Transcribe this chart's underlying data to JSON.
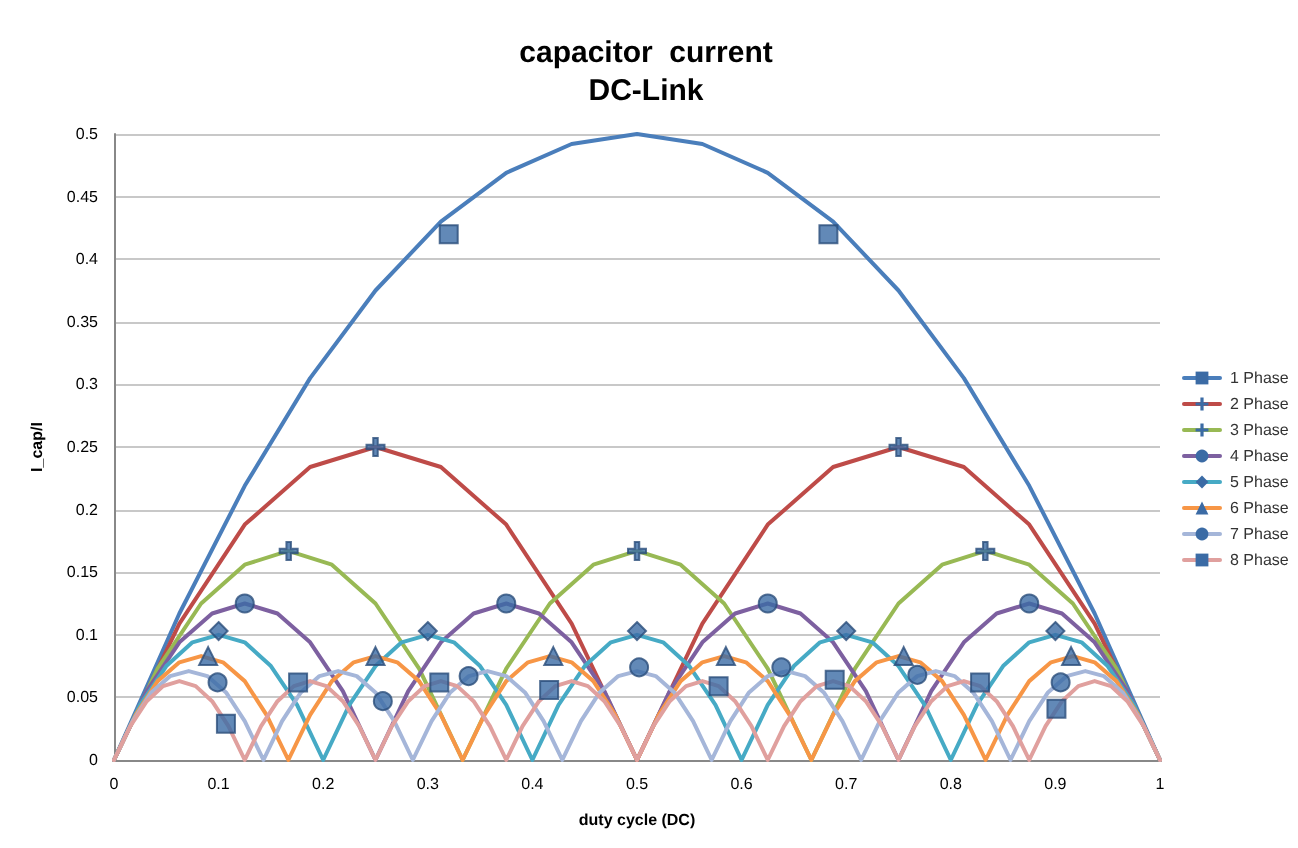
{
  "chart_data": {
    "type": "line",
    "title": "capacitor  current",
    "subtitle": "DC-Link",
    "xlabel": "duty cycle (DC)",
    "ylabel": "I_cap/I",
    "xlim": [
      0,
      1
    ],
    "xticks": [
      0,
      0.1,
      0.2,
      0.3,
      0.4,
      0.5,
      0.6,
      0.7,
      0.8,
      0.9,
      1
    ],
    "ylim": [
      0,
      0.5
    ],
    "yticks": [
      0,
      0.05,
      0.1,
      0.15,
      0.2,
      0.25,
      0.3,
      0.35,
      0.4,
      0.45,
      0.5
    ],
    "grid": "y",
    "legend": "right",
    "line_style": "solid",
    "series": [
      {
        "name": "1 Phase",
        "color": "#4a7ebb",
        "x": [
          0,
          0.0625,
          0.125,
          0.1875,
          0.25,
          0.3125,
          0.375,
          0.4375,
          0.5,
          0.5625,
          0.625,
          0.6875,
          0.75,
          0.8125,
          0.875,
          0.9375,
          1
        ],
        "values": [
          0,
          0.117,
          0.219,
          0.305,
          0.375,
          0.43,
          0.469,
          0.492,
          0.5,
          0.492,
          0.469,
          0.43,
          0.375,
          0.305,
          0.219,
          0.117,
          0
        ]
      },
      {
        "type": "scatter",
        "color": "#3b6ba5",
        "marker": "square",
        "x": [
          0.32,
          0.683
        ],
        "values": [
          0.42,
          0.42
        ]
      },
      {
        "name": "2 Phase",
        "color": "#be4b48",
        "x": [
          0,
          0.0625,
          0.125,
          0.1875,
          0.25,
          0.3125,
          0.375,
          0.4375,
          0.5,
          0.5625,
          0.625,
          0.6875,
          0.75,
          0.8125,
          0.875,
          0.9375,
          1
        ],
        "values": [
          0,
          0.109,
          0.188,
          0.234,
          0.25,
          0.234,
          0.188,
          0.109,
          0,
          0.109,
          0.188,
          0.234,
          0.25,
          0.234,
          0.188,
          0.109,
          0
        ]
      },
      {
        "type": "scatter",
        "color": "#3b6ba5",
        "marker": "cross",
        "x": [
          0.25,
          0.75
        ],
        "values": [
          0.25,
          0.25
        ]
      },
      {
        "name": "3 Phase",
        "color": "#98b954",
        "x": [
          0,
          0.0417,
          0.0833,
          0.125,
          0.1667,
          0.2083,
          0.25,
          0.2917,
          0.3333,
          0.375,
          0.4167,
          0.4583,
          0.5,
          0.5417,
          0.5833,
          0.625,
          0.6667,
          0.7083,
          0.75,
          0.7917,
          0.8333,
          0.875,
          0.9167,
          0.9583,
          1
        ],
        "values": [
          0,
          0.073,
          0.125,
          0.156,
          0.167,
          0.156,
          0.125,
          0.073,
          0,
          0.073,
          0.125,
          0.156,
          0.167,
          0.156,
          0.125,
          0.073,
          0,
          0.073,
          0.125,
          0.156,
          0.167,
          0.156,
          0.125,
          0.073,
          0
        ]
      },
      {
        "type": "scatter",
        "color": "#3b6ba5",
        "marker": "cross",
        "x": [
          0.167,
          0.5,
          0.833
        ],
        "values": [
          0.167,
          0.167,
          0.167
        ]
      },
      {
        "name": "4 Phase",
        "color": "#7d60a0",
        "x": [
          0,
          0.0313,
          0.0625,
          0.0938,
          0.125,
          0.1563,
          0.1875,
          0.2188,
          0.25,
          0.2813,
          0.3125,
          0.3438,
          0.375,
          0.4063,
          0.4375,
          0.4688,
          0.5,
          0.5313,
          0.5625,
          0.5938,
          0.625,
          0.6563,
          0.6875,
          0.7188,
          0.75,
          0.7813,
          0.8125,
          0.8438,
          0.875,
          0.9063,
          0.9375,
          0.9688,
          1
        ],
        "values": [
          0,
          0.055,
          0.094,
          0.117,
          0.125,
          0.117,
          0.094,
          0.055,
          0,
          0.055,
          0.094,
          0.117,
          0.125,
          0.117,
          0.094,
          0.055,
          0,
          0.055,
          0.094,
          0.117,
          0.125,
          0.117,
          0.094,
          0.055,
          0,
          0.055,
          0.094,
          0.117,
          0.125,
          0.117,
          0.094,
          0.055,
          0
        ]
      },
      {
        "type": "scatter",
        "color": "#3b6ba5",
        "marker": "circle",
        "x": [
          0.125,
          0.375,
          0.625,
          0.875
        ],
        "values": [
          0.125,
          0.125,
          0.125,
          0.125
        ]
      },
      {
        "name": "5 Phase",
        "color": "#46aac5",
        "x": [
          0,
          0.025,
          0.05,
          0.075,
          0.1,
          0.125,
          0.15,
          0.175,
          0.2,
          0.225,
          0.25,
          0.275,
          0.3,
          0.325,
          0.35,
          0.375,
          0.4,
          0.425,
          0.45,
          0.475,
          0.5,
          0.525,
          0.55,
          0.575,
          0.6,
          0.625,
          0.65,
          0.675,
          0.7,
          0.725,
          0.75,
          0.775,
          0.8,
          0.825,
          0.85,
          0.875,
          0.9,
          0.925,
          0.95,
          0.975,
          1
        ],
        "values": [
          0,
          0.044,
          0.075,
          0.094,
          0.1,
          0.094,
          0.075,
          0.044,
          0,
          0.044,
          0.075,
          0.094,
          0.1,
          0.094,
          0.075,
          0.044,
          0,
          0.044,
          0.075,
          0.094,
          0.1,
          0.094,
          0.075,
          0.044,
          0,
          0.044,
          0.075,
          0.094,
          0.1,
          0.094,
          0.075,
          0.044,
          0,
          0.044,
          0.075,
          0.094,
          0.1,
          0.094,
          0.075,
          0.044,
          0
        ]
      },
      {
        "type": "scatter",
        "color": "#3b6ba5",
        "marker": "diamond",
        "x": [
          0.1,
          0.3,
          0.5,
          0.7,
          0.9
        ],
        "values": [
          0.103,
          0.103,
          0.103,
          0.103,
          0.103
        ]
      },
      {
        "name": "6 Phase",
        "color": "#f79646",
        "x": [
          0,
          0.0208,
          0.0417,
          0.0625,
          0.0833,
          0.1042,
          0.125,
          0.1458,
          0.1667,
          0.1875,
          0.2083,
          0.2292,
          0.25,
          0.2708,
          0.2917,
          0.3125,
          0.3333,
          0.3542,
          0.375,
          0.3958,
          0.4167,
          0.4375,
          0.4583,
          0.4792,
          0.5,
          0.5208,
          0.5417,
          0.5625,
          0.5833,
          0.6042,
          0.625,
          0.6458,
          0.6667,
          0.6875,
          0.7083,
          0.7292,
          0.75,
          0.7708,
          0.7917,
          0.8125,
          0.8333,
          0.8542,
          0.875,
          0.8958,
          0.9167,
          0.9375,
          0.9583,
          0.9792,
          1
        ],
        "values": [
          0,
          0.036,
          0.063,
          0.078,
          0.083,
          0.078,
          0.063,
          0.036,
          0,
          0.036,
          0.063,
          0.078,
          0.083,
          0.078,
          0.063,
          0.036,
          0,
          0.036,
          0.063,
          0.078,
          0.083,
          0.078,
          0.063,
          0.036,
          0,
          0.036,
          0.063,
          0.078,
          0.083,
          0.078,
          0.063,
          0.036,
          0,
          0.036,
          0.063,
          0.078,
          0.083,
          0.078,
          0.063,
          0.036,
          0,
          0.036,
          0.063,
          0.078,
          0.083,
          0.078,
          0.063,
          0.036,
          0
        ]
      },
      {
        "type": "scatter",
        "color": "#3b6ba5",
        "marker": "triangle",
        "x": [
          0.09,
          0.25,
          0.42,
          0.585,
          0.755,
          0.915
        ],
        "values": [
          0.083,
          0.083,
          0.083,
          0.083,
          0.083,
          0.083
        ]
      },
      {
        "name": "7 Phase",
        "color": "#a5b6d9",
        "x": [
          0,
          0.0179,
          0.0357,
          0.0536,
          0.0714,
          0.0893,
          0.1071,
          0.125,
          0.1429,
          0.1607,
          0.1786,
          0.1964,
          0.2143,
          0.2321,
          0.25,
          0.2679,
          0.2857,
          0.3036,
          0.3214,
          0.3393,
          0.3571,
          0.375,
          0.3929,
          0.4107,
          0.4286,
          0.4464,
          0.4643,
          0.4821,
          0.5,
          0.5179,
          0.5357,
          0.5536,
          0.5714,
          0.5893,
          0.6071,
          0.625,
          0.6429,
          0.6607,
          0.6786,
          0.6964,
          0.7143,
          0.7321,
          0.75,
          0.7679,
          0.7857,
          0.8036,
          0.8214,
          0.8393,
          0.8571,
          0.875,
          0.8929,
          0.9107,
          0.9286,
          0.9464,
          0.9643,
          0.9821,
          1
        ],
        "values": [
          0,
          0.031,
          0.054,
          0.067,
          0.071,
          0.067,
          0.054,
          0.031,
          0,
          0.031,
          0.054,
          0.067,
          0.071,
          0.067,
          0.054,
          0.031,
          0,
          0.031,
          0.054,
          0.067,
          0.071,
          0.067,
          0.054,
          0.031,
          0,
          0.031,
          0.054,
          0.067,
          0.071,
          0.067,
          0.054,
          0.031,
          0,
          0.031,
          0.054,
          0.067,
          0.071,
          0.067,
          0.054,
          0.031,
          0,
          0.031,
          0.054,
          0.067,
          0.071,
          0.067,
          0.054,
          0.031,
          0,
          0.031,
          0.054,
          0.067,
          0.071,
          0.067,
          0.054,
          0.031,
          0
        ]
      },
      {
        "type": "scatter",
        "color": "#3b6ba5",
        "marker": "circle",
        "x": [
          0.099,
          0.257,
          0.339,
          0.502,
          0.638,
          0.768,
          0.905
        ],
        "values": [
          0.062,
          0.047,
          0.067,
          0.074,
          0.074,
          0.068,
          0.062
        ]
      },
      {
        "name": "8 Phase",
        "color": "#e0a09e",
        "x": [
          0,
          0.0156,
          0.0313,
          0.0469,
          0.0625,
          0.0781,
          0.0938,
          0.1094,
          0.125,
          0.1406,
          0.1563,
          0.1719,
          0.1875,
          0.2031,
          0.2188,
          0.2344,
          0.25,
          0.2656,
          0.2813,
          0.2969,
          0.3125,
          0.3281,
          0.3438,
          0.3594,
          0.375,
          0.3906,
          0.4063,
          0.4219,
          0.4375,
          0.4531,
          0.4688,
          0.4844,
          0.5,
          0.5156,
          0.5313,
          0.5469,
          0.5625,
          0.5781,
          0.5938,
          0.6094,
          0.625,
          0.6406,
          0.6563,
          0.6719,
          0.6875,
          0.7031,
          0.7188,
          0.7344,
          0.75,
          0.7656,
          0.7813,
          0.7969,
          0.8125,
          0.8281,
          0.8438,
          0.8594,
          0.875,
          0.8906,
          0.9063,
          0.9219,
          0.9375,
          0.9531,
          0.9688,
          0.9844,
          1
        ],
        "values": [
          0,
          0.027,
          0.047,
          0.059,
          0.063,
          0.059,
          0.047,
          0.027,
          0,
          0.027,
          0.047,
          0.059,
          0.063,
          0.059,
          0.047,
          0.027,
          0,
          0.027,
          0.047,
          0.059,
          0.063,
          0.059,
          0.047,
          0.027,
          0,
          0.027,
          0.047,
          0.059,
          0.063,
          0.059,
          0.047,
          0.027,
          0,
          0.027,
          0.047,
          0.059,
          0.063,
          0.059,
          0.047,
          0.027,
          0,
          0.027,
          0.047,
          0.059,
          0.063,
          0.059,
          0.047,
          0.027,
          0,
          0.027,
          0.047,
          0.059,
          0.063,
          0.059,
          0.047,
          0.027,
          0,
          0.027,
          0.047,
          0.059,
          0.063,
          0.059,
          0.047,
          0.027,
          0
        ]
      },
      {
        "type": "scatter",
        "color": "#3b6ba5",
        "marker": "square",
        "x": [
          0.107,
          0.176,
          0.311,
          0.416,
          0.578,
          0.689,
          0.828,
          0.901
        ],
        "values": [
          0.029,
          0.062,
          0.062,
          0.056,
          0.059,
          0.064,
          0.062,
          0.041
        ]
      }
    ]
  }
}
